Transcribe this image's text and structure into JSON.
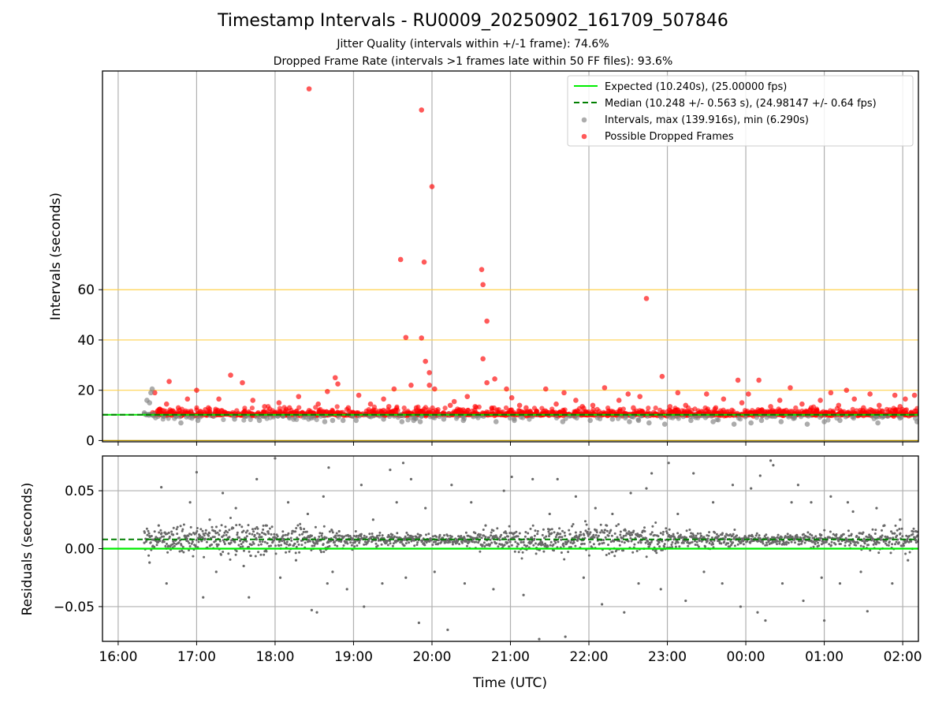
{
  "title": "Timestamp Intervals - RU0009_20250902_161709_507846",
  "subtitle_1": "Jitter Quality (intervals within +/-1 frame): 74.6%",
  "subtitle_2": "Dropped Frame Rate (intervals >1 frames late within 50 FF files): 93.6%",
  "colors": {
    "expected": "#00ee00",
    "median": "#007f00",
    "intervals": "#808080",
    "dropped": "#ff0000",
    "threshold_lines": "#ffd24d",
    "residual_points": "#696969"
  },
  "chart_data": [
    {
      "type": "scatter",
      "panel": "top",
      "ylabel": "Intervals (seconds)",
      "xlabel": "",
      "xlim": [
        "15:48",
        "02:12"
      ],
      "ylim": [
        -0.5,
        147
      ],
      "yticks": [
        0,
        20,
        40,
        60
      ],
      "xticks": [
        "16:00",
        "17:00",
        "18:00",
        "19:00",
        "20:00",
        "21:00",
        "22:00",
        "23:00",
        "00:00",
        "01:00",
        "02:00"
      ],
      "grid": "x",
      "threshold_lines": [
        20,
        40,
        60
      ],
      "legend_position": "upper right",
      "legend": [
        {
          "key": "expected",
          "label": "Expected (10.240s), (25.00000 fps)"
        },
        {
          "key": "median",
          "label": "Median (10.248 +/- 0.563 s), (24.98147 +/- 0.64 fps)"
        },
        {
          "key": "intervals",
          "label": "Intervals, max (139.916s), min (6.290s)"
        },
        {
          "key": "dropped",
          "label": "Possible Dropped Frames"
        }
      ],
      "expected_value": 10.24,
      "median_value": 10.248,
      "series": [
        {
          "name": "Possible Dropped Frames",
          "points": [
            [
              "18:26",
              139.9
            ],
            [
              "19:52",
              131.5
            ],
            [
              "20:00",
              101
            ],
            [
              "19:36",
              72
            ],
            [
              "19:54",
              71
            ],
            [
              "20:38",
              68
            ],
            [
              "20:39",
              62
            ],
            [
              "22:44",
              56.5
            ],
            [
              "20:42",
              47.5
            ],
            [
              "19:40",
              41
            ],
            [
              "19:52",
              40.8
            ],
            [
              "20:39",
              32.5
            ],
            [
              "19:55",
              31.5
            ],
            [
              "19:58",
              27
            ],
            [
              "17:26",
              26
            ],
            [
              "22:56",
              25.5
            ],
            [
              "18:46",
              25
            ],
            [
              "20:48",
              24.5
            ],
            [
              "00:10",
              24
            ],
            [
              "23:54",
              24
            ],
            [
              "16:39",
              23.5
            ],
            [
              "20:42",
              23
            ],
            [
              "17:35",
              23
            ],
            [
              "18:48",
              22.5
            ],
            [
              "19:58",
              22
            ],
            [
              "19:44",
              22
            ],
            [
              "00:34",
              21
            ],
            [
              "21:27",
              20.5
            ],
            [
              "22:12",
              21
            ],
            [
              "19:31",
              20.5
            ],
            [
              "20:57",
              20.5
            ],
            [
              "20:02",
              20.5
            ],
            [
              "17:00",
              20
            ],
            [
              "01:17",
              20
            ],
            [
              "22:30",
              18.5
            ],
            [
              "18:40",
              19.5
            ],
            [
              "16:28",
              19
            ],
            [
              "21:41",
              19
            ],
            [
              "23:08",
              19
            ],
            [
              "23:30",
              18.5
            ],
            [
              "19:04",
              18
            ],
            [
              "00:02",
              18.5
            ],
            [
              "01:05",
              19
            ],
            [
              "01:35",
              18.5
            ],
            [
              "01:54",
              18
            ],
            [
              "02:09",
              18
            ],
            [
              "18:18",
              17.5
            ],
            [
              "19:23",
              16.5
            ],
            [
              "20:27",
              17.5
            ],
            [
              "21:01",
              17
            ],
            [
              "22:39",
              17.5
            ],
            [
              "17:17",
              16.5
            ],
            [
              "16:53",
              16.5
            ],
            [
              "17:43",
              16
            ],
            [
              "20:17",
              15.5
            ],
            [
              "21:50",
              16
            ],
            [
              "22:23",
              16
            ],
            [
              "23:43",
              16.5
            ],
            [
              "00:26",
              16
            ],
            [
              "00:57",
              16
            ],
            [
              "01:23",
              16.5
            ],
            [
              "02:02",
              16.5
            ],
            [
              "16:37",
              14.5
            ],
            [
              "18:03",
              15
            ],
            [
              "18:33",
              14.5
            ],
            [
              "19:13",
              14.5
            ],
            [
              "20:14",
              14
            ],
            [
              "21:07",
              14
            ],
            [
              "21:35",
              14.5
            ],
            [
              "22:03",
              14
            ],
            [
              "23:14",
              14
            ],
            [
              "23:57",
              15
            ],
            [
              "00:43",
              14.5
            ],
            [
              "01:11",
              14
            ],
            [
              "01:42",
              14
            ],
            [
              "16:46",
              13
            ],
            [
              "17:09",
              13
            ],
            [
              "17:52",
              13.5
            ],
            [
              "18:11",
              13
            ],
            [
              "18:56",
              13
            ],
            [
              "19:27",
              13.5
            ],
            [
              "19:48",
              13
            ],
            [
              "20:33",
              13.5
            ],
            [
              "21:12",
              13
            ],
            [
              "21:55",
              13.5
            ],
            [
              "22:34",
              13
            ],
            [
              "23:02",
              13.5
            ],
            [
              "23:37",
              13
            ],
            [
              "00:19",
              13.5
            ],
            [
              "00:50",
              13
            ],
            [
              "01:30",
              13
            ],
            [
              "01:58",
              13.5
            ]
          ]
        },
        {
          "name": "Intervals",
          "points": [
            [
              "16:26",
              20.5
            ],
            [
              "16:25",
              19
            ],
            [
              "16:22",
              16
            ],
            [
              "16:24",
              15
            ],
            [
              "16:20",
              11
            ],
            [
              "16:27",
              10.5
            ],
            [
              "16:48",
              7
            ],
            [
              "17:01",
              8
            ],
            [
              "17:29",
              8.5
            ],
            [
              "17:48",
              8
            ],
            [
              "18:38",
              7.5
            ],
            [
              "18:44",
              8
            ],
            [
              "18:52",
              8
            ],
            [
              "19:02",
              8
            ],
            [
              "19:23",
              8.5
            ],
            [
              "19:37",
              7.5
            ],
            [
              "19:46",
              8
            ],
            [
              "19:51",
              7.5
            ],
            [
              "20:09",
              8.5
            ],
            [
              "20:24",
              8
            ],
            [
              "20:49",
              7.5
            ],
            [
              "21:03",
              8
            ],
            [
              "21:40",
              7.5
            ],
            [
              "22:01",
              8
            ],
            [
              "22:18",
              8.5
            ],
            [
              "22:31",
              7.5
            ],
            [
              "22:38",
              8
            ],
            [
              "22:46",
              7
            ],
            [
              "22:58",
              6.5
            ],
            [
              "23:18",
              8
            ],
            [
              "23:35",
              7.5
            ],
            [
              "23:51",
              6.5
            ],
            [
              "00:04",
              7
            ],
            [
              "00:12",
              8
            ],
            [
              "00:27",
              7.5
            ],
            [
              "00:47",
              6.5
            ],
            [
              "01:00",
              7.5
            ],
            [
              "01:12",
              8
            ],
            [
              "01:41",
              7
            ],
            [
              "02:11",
              7.5
            ]
          ]
        }
      ]
    },
    {
      "type": "scatter",
      "panel": "bottom",
      "ylabel": "Residuals (seconds)",
      "xlabel": "Time (UTC)",
      "xlim": [
        "15:48",
        "02:12"
      ],
      "ylim": [
        -0.08,
        0.08
      ],
      "yticks": [
        0.05,
        0.0,
        -0.05
      ],
      "ytick_labels": [
        "0.05",
        "0.00",
        "−0.05"
      ],
      "xticks": [
        "16:00",
        "17:00",
        "18:00",
        "19:00",
        "20:00",
        "21:00",
        "22:00",
        "23:00",
        "00:00",
        "01:00",
        "02:00"
      ],
      "grid": "both",
      "expected_value": 0.0,
      "median_value": 0.008,
      "series": [
        {
          "name": "Residuals",
          "points": [
            [
              "16:20",
              0.005
            ],
            [
              "16:24",
              -0.012
            ],
            [
              "16:31",
              0.02
            ],
            [
              "16:33",
              0.053
            ],
            [
              "16:37",
              -0.03
            ],
            [
              "16:42",
              0.012
            ],
            [
              "16:55",
              0.04
            ],
            [
              "17:00",
              0.066
            ],
            [
              "17:05",
              -0.042
            ],
            [
              "17:10",
              0.025
            ],
            [
              "17:15",
              -0.02
            ],
            [
              "17:20",
              0.048
            ],
            [
              "17:25",
              0.01
            ],
            [
              "17:30",
              0.035
            ],
            [
              "17:36",
              -0.015
            ],
            [
              "17:40",
              -0.042
            ],
            [
              "17:46",
              0.06
            ],
            [
              "17:53",
              0.02
            ],
            [
              "18:00",
              0.078
            ],
            [
              "18:04",
              -0.025
            ],
            [
              "18:10",
              0.04
            ],
            [
              "18:16",
              -0.01
            ],
            [
              "18:25",
              0.03
            ],
            [
              "18:28",
              -0.053
            ],
            [
              "18:32",
              -0.055
            ],
            [
              "18:37",
              0.045
            ],
            [
              "18:40",
              -0.03
            ],
            [
              "18:41",
              0.07
            ],
            [
              "18:44",
              -0.02
            ],
            [
              "18:49",
              0.015
            ],
            [
              "18:55",
              -0.035
            ],
            [
              "19:06",
              0.055
            ],
            [
              "19:08",
              -0.05
            ],
            [
              "19:15",
              0.025
            ],
            [
              "19:22",
              -0.03
            ],
            [
              "19:28",
              0.068
            ],
            [
              "19:33",
              0.04
            ],
            [
              "19:38",
              0.074
            ],
            [
              "19:40",
              -0.025
            ],
            [
              "19:44",
              0.06
            ],
            [
              "19:50",
              -0.064
            ],
            [
              "19:55",
              0.035
            ],
            [
              "20:02",
              -0.02
            ],
            [
              "20:12",
              -0.07
            ],
            [
              "20:15",
              0.055
            ],
            [
              "20:25",
              -0.03
            ],
            [
              "20:30",
              0.04
            ],
            [
              "20:41",
              0.02
            ],
            [
              "20:47",
              -0.035
            ],
            [
              "20:55",
              0.05
            ],
            [
              "21:01",
              0.062
            ],
            [
              "21:10",
              -0.04
            ],
            [
              "21:17",
              0.06
            ],
            [
              "21:22",
              -0.078
            ],
            [
              "21:30",
              0.03
            ],
            [
              "21:36",
              0.06
            ],
            [
              "21:42",
              -0.076
            ],
            [
              "21:50",
              0.045
            ],
            [
              "21:56",
              -0.025
            ],
            [
              "22:05",
              0.035
            ],
            [
              "22:10",
              -0.048
            ],
            [
              "22:18",
              0.03
            ],
            [
              "22:27",
              -0.055
            ],
            [
              "22:32",
              0.048
            ],
            [
              "22:38",
              -0.03
            ],
            [
              "22:44",
              0.052
            ],
            [
              "22:48",
              0.065
            ],
            [
              "22:55",
              -0.035
            ],
            [
              "23:01",
              0.074
            ],
            [
              "23:08",
              0.03
            ],
            [
              "23:14",
              -0.045
            ],
            [
              "23:20",
              0.065
            ],
            [
              "23:28",
              -0.02
            ],
            [
              "23:35",
              0.04
            ],
            [
              "23:42",
              -0.03
            ],
            [
              "23:50",
              0.055
            ],
            [
              "23:56",
              -0.05
            ],
            [
              "00:04",
              0.052
            ],
            [
              "00:09",
              -0.055
            ],
            [
              "00:11",
              0.063
            ],
            [
              "00:15",
              -0.062
            ],
            [
              "00:19",
              0.076
            ],
            [
              "00:21",
              0.072
            ],
            [
              "00:28",
              -0.03
            ],
            [
              "00:35",
              0.04
            ],
            [
              "00:40",
              0.055
            ],
            [
              "00:44",
              -0.045
            ],
            [
              "00:50",
              0.04
            ],
            [
              "00:58",
              -0.025
            ],
            [
              "01:00",
              -0.062
            ],
            [
              "01:05",
              0.045
            ],
            [
              "01:12",
              -0.03
            ],
            [
              "01:18",
              0.04
            ],
            [
              "01:22",
              0.032
            ],
            [
              "01:28",
              -0.02
            ],
            [
              "01:33",
              -0.054
            ],
            [
              "01:40",
              0.035
            ],
            [
              "01:46",
              0.02
            ],
            [
              "01:52",
              -0.03
            ],
            [
              "01:58",
              0.025
            ],
            [
              "02:04",
              -0.01
            ],
            [
              "02:10",
              0.015
            ]
          ]
        }
      ]
    }
  ]
}
